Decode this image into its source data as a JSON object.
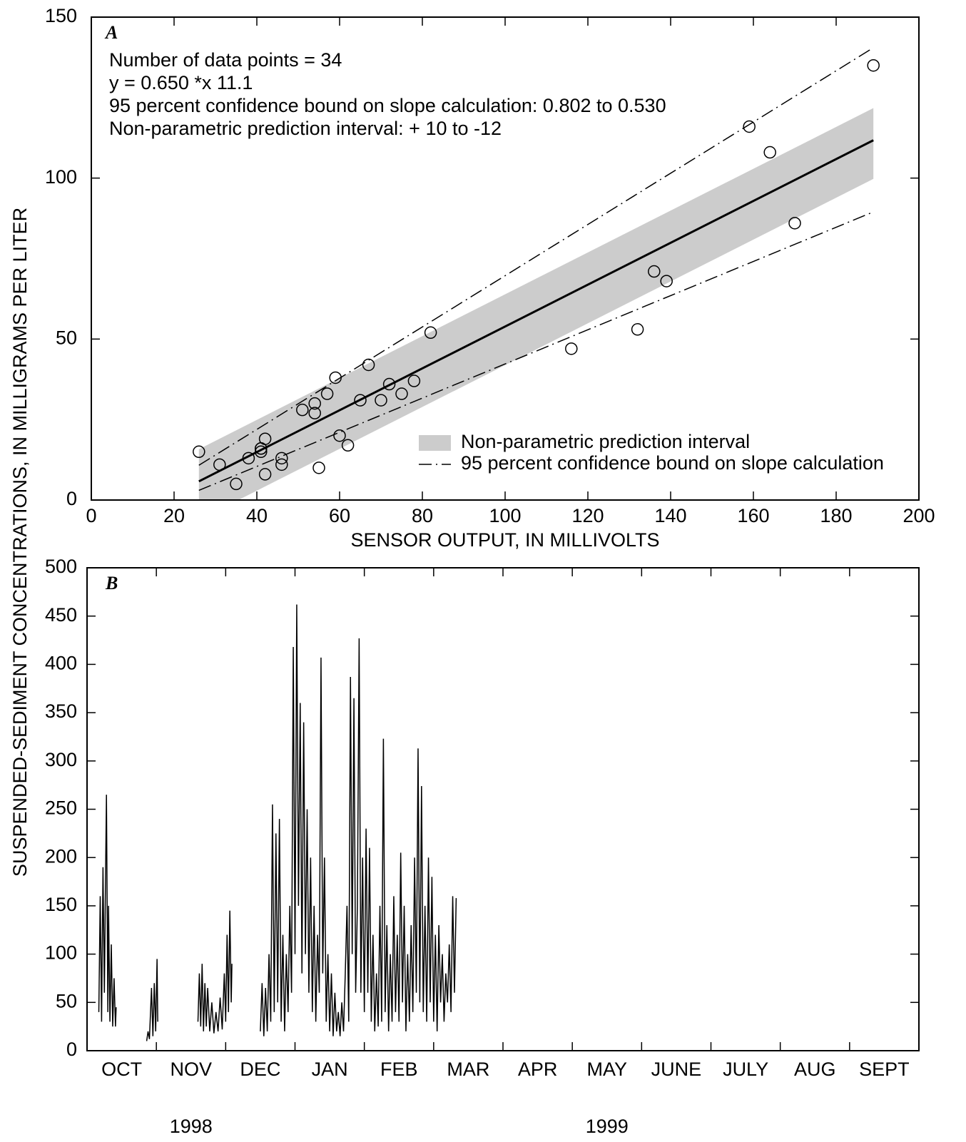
{
  "ylabel": "SUSPENDED-SEDIMENT CONCENTRATIONS, IN MILLIGRAMS PER LITER",
  "chart_data": [
    {
      "type": "scatter",
      "label": "A",
      "annotations": [
        "Number of data points = 34",
        "y = 0.650 *x   11.1",
        "95 percent confidence bound on slope calculation: 0.802 to 0.530",
        "Non-parametric prediction interval: + 10 to -12"
      ],
      "xlabel": "SENSOR OUTPUT, IN MILLIVOLTS",
      "xlim": [
        0,
        200
      ],
      "ylim": [
        0,
        150
      ],
      "xticks": [
        0,
        20,
        40,
        60,
        80,
        100,
        120,
        140,
        160,
        180,
        200
      ],
      "yticks": [
        0,
        50,
        100,
        150
      ],
      "x": [
        26,
        31,
        35,
        38,
        41,
        41,
        41,
        42,
        42,
        46,
        46,
        51,
        54,
        54,
        55,
        57,
        59,
        60,
        62,
        65,
        67,
        70,
        72,
        75,
        78,
        82,
        116,
        132,
        136,
        139,
        159,
        164,
        170,
        189
      ],
      "y": [
        15,
        11,
        5,
        13,
        16,
        16,
        15,
        19,
        8,
        13,
        11,
        28,
        30,
        27,
        10,
        33,
        38,
        20,
        17,
        31,
        42,
        31,
        36,
        33,
        37,
        52,
        47,
        53,
        71,
        68,
        116,
        108,
        86,
        135
      ],
      "marker_color": "#000000",
      "fit": {
        "x": [
          26,
          189
        ],
        "y": [
          5.8,
          111.75
        ],
        "color": "#000000"
      },
      "prediction_interval": {
        "name": "Non-parametric prediction interval",
        "color": "#cccccc",
        "x": [
          26,
          189
        ],
        "lower": [
          -6.2,
          99.75
        ],
        "upper": [
          15.8,
          121.75
        ]
      },
      "confidence_bound": {
        "name": "95 percent confidence bound on slope calculation",
        "color": "#000000",
        "x": [
          26,
          189
        ],
        "lower": [
          3,
          89.5
        ],
        "upper": [
          10.8,
          140.5
        ]
      },
      "legend": "lower right"
    },
    {
      "type": "line",
      "label": "B",
      "categories": [
        "OCT",
        "NOV",
        "DEC",
        "JAN",
        "FEB",
        "MAR",
        "APR",
        "MAY",
        "JUNE",
        "JULY",
        "AUG",
        "SEPT"
      ],
      "years": [
        "1998",
        "1999"
      ],
      "xlim": [
        0,
        12
      ],
      "ylim": [
        0,
        500
      ],
      "yticks": [
        0,
        50,
        100,
        150,
        200,
        250,
        300,
        350,
        400,
        450,
        500
      ],
      "color": "#000000",
      "x": [
        0.17,
        0.19,
        0.21,
        0.23,
        0.25,
        0.27,
        0.28,
        0.3,
        0.31,
        0.33,
        0.35,
        0.37,
        0.39,
        0.41,
        0.42,
        0.5,
        0.86,
        0.88,
        0.9,
        0.93,
        0.95,
        0.97,
        0.99,
        1.01,
        1.02,
        1.2,
        1.6,
        1.62,
        1.64,
        1.66,
        1.68,
        1.7,
        1.72,
        1.74,
        1.77,
        1.8,
        1.83,
        1.86,
        1.89,
        1.92,
        1.95,
        1.98,
        2.0,
        2.02,
        2.04,
        2.06,
        2.08,
        2.09,
        2.3,
        2.5,
        2.525,
        2.55,
        2.575,
        2.6,
        2.625,
        2.65,
        2.675,
        2.7,
        2.725,
        2.75,
        2.775,
        2.8,
        2.825,
        2.85,
        2.875,
        2.9,
        2.925,
        2.95,
        2.975,
        3.0,
        3.025,
        3.05,
        3.075,
        3.1,
        3.125,
        3.15,
        3.175,
        3.2,
        3.225,
        3.25,
        3.275,
        3.3,
        3.325,
        3.35,
        3.375,
        3.4,
        3.425,
        3.45,
        3.475,
        3.5,
        3.525,
        3.55,
        3.575,
        3.6,
        3.625,
        3.65,
        3.675,
        3.7,
        3.725,
        3.75,
        3.775,
        3.8,
        3.825,
        3.85,
        3.875,
        3.9,
        3.925,
        3.95,
        3.975,
        4.0,
        4.025,
        4.05,
        4.075,
        4.1,
        4.125,
        4.15,
        4.175,
        4.2,
        4.225,
        4.25,
        4.275,
        4.3,
        4.325,
        4.35,
        4.375,
        4.4,
        4.425,
        4.45,
        4.475,
        4.5,
        4.525,
        4.55,
        4.575,
        4.6,
        4.625,
        4.65,
        4.675,
        4.7,
        4.725,
        4.75,
        4.775,
        4.8,
        4.825,
        4.85,
        4.875,
        4.9,
        4.925,
        4.95,
        4.975,
        5.0,
        5.025,
        5.05,
        5.075,
        5.1,
        5.125,
        5.15,
        5.175,
        5.2,
        5.225,
        5.25,
        5.275,
        5.3,
        5.325
      ],
      "values": [
        40,
        160,
        30,
        190,
        60,
        200,
        265,
        40,
        150,
        30,
        110,
        25,
        75,
        25,
        45,
        null,
        10,
        20,
        12,
        65,
        15,
        70,
        20,
        95,
        30,
        null,
        30,
        80,
        25,
        90,
        20,
        70,
        25,
        65,
        20,
        50,
        18,
        40,
        20,
        55,
        22,
        80,
        30,
        120,
        40,
        145,
        50,
        90,
        null,
        20,
        70,
        15,
        65,
        20,
        100,
        30,
        255,
        40,
        225,
        50,
        240,
        30,
        120,
        20,
        100,
        40,
        150,
        60,
        418,
        100,
        462,
        150,
        360,
        80,
        340,
        100,
        250,
        60,
        200,
        40,
        150,
        30,
        120,
        60,
        407,
        80,
        200,
        30,
        100,
        20,
        80,
        15,
        60,
        20,
        40,
        15,
        50,
        20,
        80,
        150,
        30,
        387,
        100,
        365,
        60,
        150,
        427,
        60,
        200,
        40,
        230,
        60,
        210,
        30,
        120,
        20,
        80,
        25,
        150,
        30,
        323,
        40,
        130,
        20,
        100,
        30,
        160,
        40,
        120,
        30,
        205,
        50,
        150,
        20,
        100,
        30,
        130,
        40,
        200,
        60,
        313,
        50,
        274,
        40,
        150,
        30,
        200,
        50,
        180,
        30,
        120,
        20,
        130,
        50,
        100,
        30,
        80,
        50,
        110,
        40,
        160,
        60,
        158
      ]
    }
  ]
}
